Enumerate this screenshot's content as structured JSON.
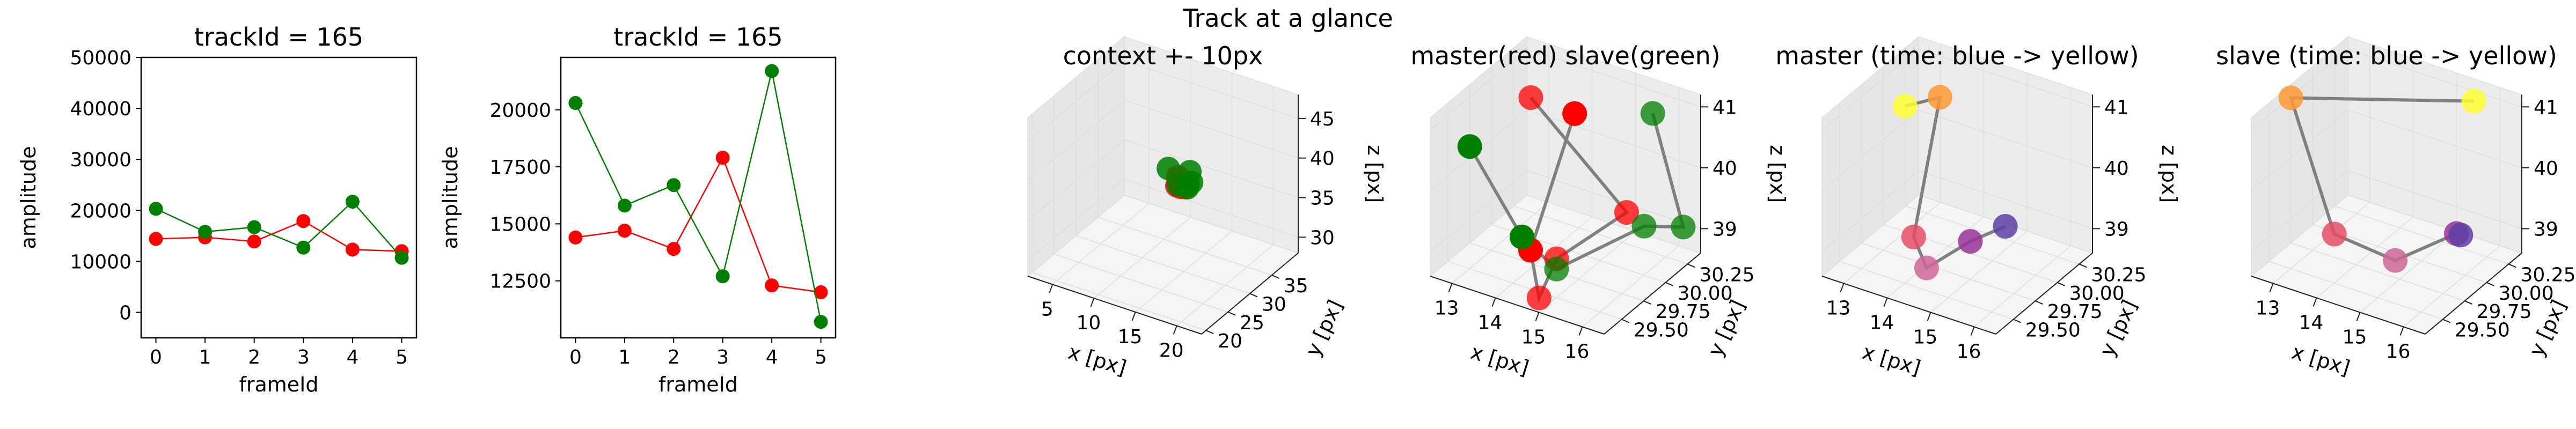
{
  "suptitle": "Track at a glance",
  "colors": {
    "master": "#ff0000",
    "slave": "#008000",
    "path": "#808080",
    "time_start": "#ffff33",
    "time_mid_a": "#ff9933",
    "time_mid_b": "#e64d66",
    "time_mid_c": "#cc6699",
    "time_mid_d": "#993399",
    "time_end": "#5d3fa5",
    "pane": "#f2f2f2",
    "grid": "#dedede"
  },
  "chart_data": [
    {
      "type": "line",
      "title": "trackId = 165",
      "xlabel": "frameId",
      "ylabel": "amplitude",
      "xlim": [
        -0.3,
        5.3
      ],
      "ylim": [
        -5000,
        50000
      ],
      "xticks": [
        0,
        1,
        2,
        3,
        4,
        5
      ],
      "xtick_labels": [
        "0",
        "1",
        "2",
        "3",
        "4",
        "5"
      ],
      "yticks": [
        0,
        10000,
        20000,
        30000,
        40000,
        50000
      ],
      "ytick_labels": [
        "0",
        "10000",
        "20000",
        "30000",
        "40000",
        "50000"
      ],
      "x": [
        0,
        1,
        2,
        3,
        4,
        5
      ],
      "series": [
        {
          "values": [
            14400,
            14700,
            13900,
            17900,
            12300,
            12000
          ],
          "color": "#ff0000"
        },
        {
          "values": [
            20300,
            15800,
            16700,
            12700,
            21700,
            10700
          ],
          "color": "#008000"
        }
      ]
    },
    {
      "type": "line",
      "title": "trackId = 165",
      "xlabel": "frameId",
      "ylabel": "amplitude",
      "xlim": [
        -0.3,
        5.3
      ],
      "ylim": [
        10000,
        22300
      ],
      "xticks": [
        0,
        1,
        2,
        3,
        4,
        5
      ],
      "xtick_labels": [
        "0",
        "1",
        "2",
        "3",
        "4",
        "5"
      ],
      "yticks": [
        12500,
        15000,
        17500,
        20000
      ],
      "ytick_labels": [
        "12500",
        "15000",
        "17500",
        "20000"
      ],
      "x": [
        0,
        1,
        2,
        3,
        4,
        5
      ],
      "series": [
        {
          "values": [
            14400,
            14700,
            13900,
            17900,
            12300,
            12000
          ],
          "color": "#ff0000"
        },
        {
          "values": [
            20300,
            15800,
            16700,
            12700,
            21700,
            10700
          ],
          "color": "#008000"
        }
      ]
    },
    {
      "type": "scatter",
      "title": "context +- 10px",
      "xlabel": "x [px]",
      "ylabel": "y [px]",
      "zlabel": "z [px]",
      "xlim": [
        2,
        23
      ],
      "ylim": [
        19,
        41
      ],
      "zlim": [
        28,
        48
      ],
      "xticks": [
        5,
        10,
        15,
        20
      ],
      "xtick_labels": [
        "5",
        "10",
        "15",
        "20"
      ],
      "yticks": [
        20,
        25,
        30,
        35
      ],
      "ytick_labels": [
        "20",
        "25",
        "30",
        "35"
      ],
      "zticks": [
        30,
        35,
        40,
        45
      ],
      "ztick_labels": [
        "30",
        "35",
        "40",
        "45"
      ],
      "master": [
        [
          14.3,
          30.0,
          39.7
        ],
        [
          15.3,
          29.8,
          38.8
        ],
        [
          14.4,
          29.6,
          38.8
        ],
        [
          14.8,
          29.7,
          38.7
        ],
        [
          14.9,
          29.9,
          38.9
        ],
        [
          15.2,
          30.0,
          39.0
        ]
      ],
      "slave": [
        [
          13.1,
          30.1,
          40.3
        ],
        [
          14.5,
          29.7,
          38.9
        ],
        [
          15.5,
          29.9,
          38.8
        ],
        [
          15.4,
          30.3,
          39.0
        ],
        [
          15.8,
          30.3,
          39.4
        ],
        [
          15.7,
          30.1,
          40.8
        ]
      ]
    },
    {
      "type": "scatter",
      "title": "master(red) slave(green)",
      "xlabel": "x [px]",
      "ylabel": "y [px]",
      "zlabel": "z [px]",
      "xlim": [
        12.5,
        16.5
      ],
      "ylim": [
        29.3,
        30.4
      ],
      "zlim": [
        38.6,
        41.2
      ],
      "xticks": [
        13,
        14,
        15,
        16
      ],
      "xtick_labels": [
        "13",
        "14",
        "15",
        "16"
      ],
      "yticks": [
        29.5,
        29.75,
        30.0,
        30.25
      ],
      "ytick_labels": [
        "29.50",
        "29.75",
        "30.00",
        "30.25"
      ],
      "zticks": [
        39,
        40,
        41
      ],
      "ztick_labels": [
        "39",
        "40",
        "41"
      ],
      "master": [
        [
          13.6,
          30.4,
          40.2
        ],
        [
          14.0,
          29.7,
          38.9
        ],
        [
          14.6,
          29.5,
          38.5
        ],
        [
          14.6,
          29.7,
          38.9
        ],
        [
          15.2,
          30.2,
          39.2
        ],
        [
          13.4,
          30.0,
          40.9
        ]
      ],
      "slave": [
        [
          12.4,
          29.8,
          40.1
        ],
        [
          13.6,
          29.8,
          38.9
        ],
        [
          14.8,
          29.6,
          38.9
        ],
        [
          15.4,
          30.3,
          38.9
        ],
        [
          16.3,
          30.3,
          39.1
        ],
        [
          15.6,
          30.3,
          40.8
        ]
      ]
    },
    {
      "type": "scatter",
      "title": "master (time: blue -> yellow)",
      "xlabel": "x [px]",
      "ylabel": "y [px]",
      "zlabel": "z [px]",
      "xlim": [
        12.5,
        16.5
      ],
      "ylim": [
        29.3,
        30.4
      ],
      "zlim": [
        38.6,
        41.2
      ],
      "xticks": [
        13,
        14,
        15,
        16
      ],
      "xtick_labels": [
        "13",
        "14",
        "15",
        "16"
      ],
      "yticks": [
        29.5,
        29.75,
        30.0,
        30.25
      ],
      "ytick_labels": [
        "29.50",
        "29.75",
        "30.00",
        "30.25"
      ],
      "zticks": [
        39,
        40,
        41
      ],
      "ztick_labels": [
        "39",
        "40",
        "41"
      ],
      "points": [
        [
          13.4,
          29.8,
          41.0
        ],
        [
          13.8,
          30.0,
          41.0
        ],
        [
          13.6,
          29.8,
          38.9
        ],
        [
          14.3,
          29.6,
          38.8
        ],
        [
          14.5,
          30.0,
          38.8
        ],
        [
          14.9,
          30.2,
          38.9
        ]
      ],
      "point_colors": [
        "#ffff33",
        "#ff9933",
        "#e64d66",
        "#cc6699",
        "#993399",
        "#5d3fa5"
      ]
    },
    {
      "type": "scatter",
      "title": "slave (time: blue -> yellow)",
      "xlabel": "x [px]",
      "ylabel": "y [px]",
      "zlabel": "z [px]",
      "xlim": [
        12.5,
        16.5
      ],
      "ylim": [
        29.3,
        30.4
      ],
      "zlim": [
        38.6,
        41.2
      ],
      "xticks": [
        13,
        14,
        15,
        16
      ],
      "xtick_labels": [
        "13",
        "14",
        "15",
        "16"
      ],
      "yticks": [
        29.5,
        29.75,
        30.0,
        30.25
      ],
      "ytick_labels": [
        "29.50",
        "29.75",
        "30.00",
        "30.25"
      ],
      "zticks": [
        39,
        40,
        41
      ],
      "ztick_labels": [
        "39",
        "40",
        "41"
      ],
      "points": [
        [
          15.6,
          30.3,
          41.0
        ],
        [
          12.4,
          29.8,
          40.9
        ],
        [
          13.4,
          29.8,
          38.9
        ],
        [
          14.8,
          29.8,
          38.8
        ],
        [
          15.4,
          30.2,
          38.9
        ],
        [
          15.5,
          30.2,
          38.9
        ]
      ],
      "point_colors": [
        "#ffff33",
        "#ff9933",
        "#e64d66",
        "#cc6699",
        "#993399",
        "#5d3fa5"
      ]
    }
  ]
}
